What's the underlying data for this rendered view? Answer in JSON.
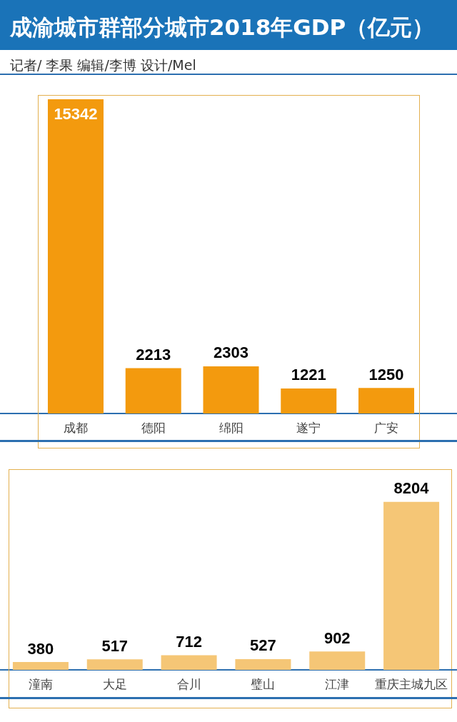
{
  "chart_data": [
    {
      "type": "bar",
      "title": "成渝城市群部分城市2018年GDP（亿元）",
      "subtitle": "记者/ 李果 编辑/李博 设计/Mel",
      "categories": [
        "成都",
        "德阳",
        "绵阳",
        "遂宁",
        "广安"
      ],
      "values": [
        15342,
        2213,
        2303,
        1221,
        1250
      ],
      "color": "#f39a0e",
      "data_labels": true
    },
    {
      "type": "bar",
      "categories": [
        "潼南",
        "大足",
        "合川",
        "璧山",
        "江津",
        "重庆主城九区"
      ],
      "values": [
        380,
        517,
        712,
        527,
        902,
        8204
      ],
      "color": "#f5c676",
      "data_labels": true
    }
  ]
}
